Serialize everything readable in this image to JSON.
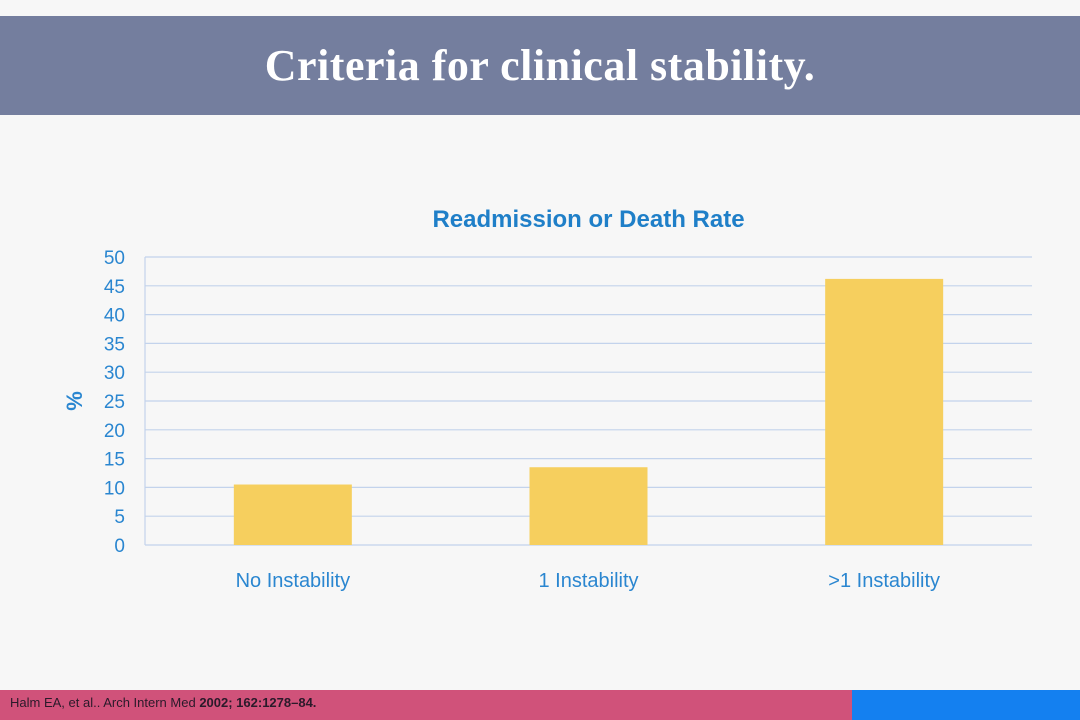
{
  "slide": {
    "title": "Criteria for clinical stability.",
    "citation_plain": "Halm EA, et al.. Arch Intern Med ",
    "citation_bold": "2002; 162:1278–84."
  },
  "colors": {
    "header": "#747e9e",
    "chart_title": "#1f7fc8",
    "axis_text": "#2a86d0",
    "bar": "#f6cf5e",
    "grid": "#c3d3ec",
    "footer_left": "#d0527a",
    "footer_right": "#1480f0"
  },
  "chart_data": {
    "type": "bar",
    "title": "Readmission or Death Rate",
    "xlabel": "",
    "ylabel": "%",
    "categories": [
      "No Instability",
      "1 Instability",
      ">1 Instability"
    ],
    "values": [
      10.5,
      13.5,
      46.2
    ],
    "ylim": [
      0,
      50
    ],
    "yticks": [
      "0",
      "5",
      "10",
      "15",
      "20",
      "25",
      "30",
      "35",
      "40",
      "45",
      "50"
    ],
    "grid": true,
    "legend": "none"
  }
}
